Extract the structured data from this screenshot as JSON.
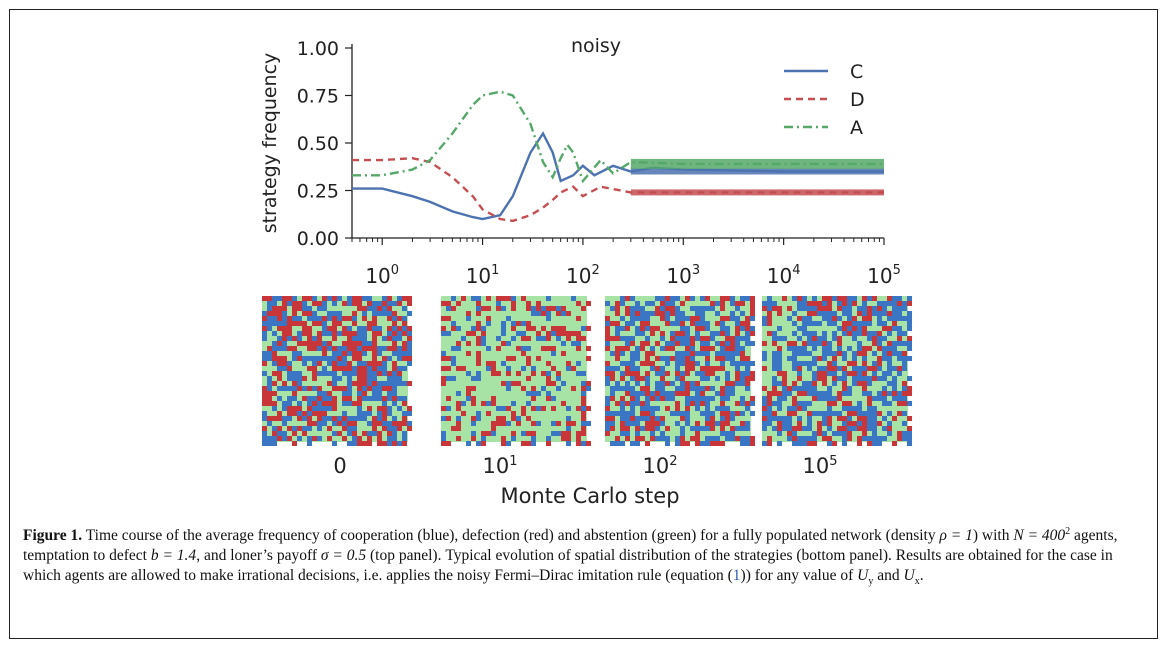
{
  "chart_data": {
    "type": "line",
    "title": "noisy",
    "ylabel": "strategy frequency",
    "xscale": "log",
    "xlim": [
      0.5,
      100000
    ],
    "ylim": [
      0,
      1
    ],
    "yticks": [
      "0.00",
      "0.25",
      "0.50",
      "0.75",
      "1.00"
    ],
    "xticks": [
      {
        "base": "10",
        "exp": "0",
        "value": 1
      },
      {
        "base": "10",
        "exp": "1",
        "value": 10
      },
      {
        "base": "10",
        "exp": "2",
        "value": 100
      },
      {
        "base": "10",
        "exp": "3",
        "value": 1000
      },
      {
        "base": "10",
        "exp": "4",
        "value": 10000
      },
      {
        "base": "10",
        "exp": "5",
        "value": 100000
      }
    ],
    "legend_position": "top-right",
    "series": [
      {
        "name": "C",
        "color": "#4c72b0",
        "style": "solid",
        "x": [
          0.5,
          1,
          2,
          3,
          5,
          8,
          10,
          15,
          20,
          30,
          40,
          50,
          60,
          80,
          100,
          130,
          200,
          300,
          500,
          1000,
          10000,
          100000
        ],
        "y": [
          0.26,
          0.26,
          0.22,
          0.19,
          0.14,
          0.11,
          0.1,
          0.12,
          0.22,
          0.45,
          0.55,
          0.45,
          0.3,
          0.33,
          0.38,
          0.33,
          0.38,
          0.35,
          0.37,
          0.36,
          0.35,
          0.35
        ]
      },
      {
        "name": "D",
        "color": "#c44e52",
        "style": "dashed",
        "x": [
          0.5,
          1,
          2,
          3,
          5,
          8,
          10,
          15,
          20,
          30,
          40,
          50,
          60,
          80,
          100,
          150,
          300,
          1000,
          10000,
          100000
        ],
        "y": [
          0.41,
          0.41,
          0.42,
          0.4,
          0.32,
          0.22,
          0.15,
          0.1,
          0.09,
          0.12,
          0.16,
          0.2,
          0.24,
          0.27,
          0.22,
          0.27,
          0.24,
          0.24,
          0.24,
          0.24
        ]
      },
      {
        "name": "A",
        "color": "#55a868",
        "style": "dashdot",
        "x": [
          0.5,
          1,
          2,
          3,
          5,
          8,
          10,
          15,
          20,
          30,
          40,
          50,
          60,
          70,
          80,
          100,
          150,
          200,
          300,
          1000,
          10000,
          100000
        ],
        "y": [
          0.33,
          0.33,
          0.36,
          0.41,
          0.55,
          0.7,
          0.75,
          0.77,
          0.75,
          0.6,
          0.4,
          0.32,
          0.42,
          0.49,
          0.45,
          0.3,
          0.41,
          0.34,
          0.4,
          0.39,
          0.39,
          0.39
        ]
      }
    ]
  },
  "snapshots": [
    {
      "label_base": "0",
      "label_exp": ""
    },
    {
      "label_base": "10",
      "label_exp": "1"
    },
    {
      "label_base": "10",
      "label_exp": "2"
    },
    {
      "label_base": "10",
      "label_exp": "5"
    }
  ],
  "snapshot_mixes": [
    {
      "blue": 0.33,
      "red": 0.34,
      "green": 0.33,
      "gray": 0.0
    },
    {
      "blue": 0.12,
      "red": 0.2,
      "green": 0.68,
      "gray": 0.0
    },
    {
      "blue": 0.4,
      "red": 0.25,
      "green": 0.35,
      "gray": 0.0
    },
    {
      "blue": 0.42,
      "red": 0.22,
      "green": 0.36,
      "gray": 0.0
    }
  ],
  "snapshot_colors": {
    "blue": "#3a76c4",
    "red": "#c8363a",
    "green": "#a8e3a6"
  },
  "xlabel": "Monte Carlo step",
  "caption": {
    "label": "Figure 1.",
    "text_1": " Time course of the average frequency of cooperation (blue), defection (red) and abstention (green) for a fully populated network (density ",
    "rho_eq": "ρ = 1",
    "text_2": ") with ",
    "n_eq": "N = 400",
    "n_exp": "2",
    "text_3": " agents, temptation to defect ",
    "b_eq": "b = 1.4",
    "text_4": ", and loner’s payoff ",
    "sigma_eq": "σ = 0.5",
    "text_5": " (top panel). Typical evolution of spatial distribution of the strategies (bottom panel). Results are obtained for the case in which agents are allowed to make irrational decisions, i.e. applies the noisy Fermi–Dirac imitation rule (equation (",
    "eq_ref": "1",
    "text_6": ")) for any value of ",
    "uy": "U",
    "uy_sub": "y",
    "text_7": " and ",
    "ux": "U",
    "ux_sub": "x",
    "text_8": "."
  }
}
